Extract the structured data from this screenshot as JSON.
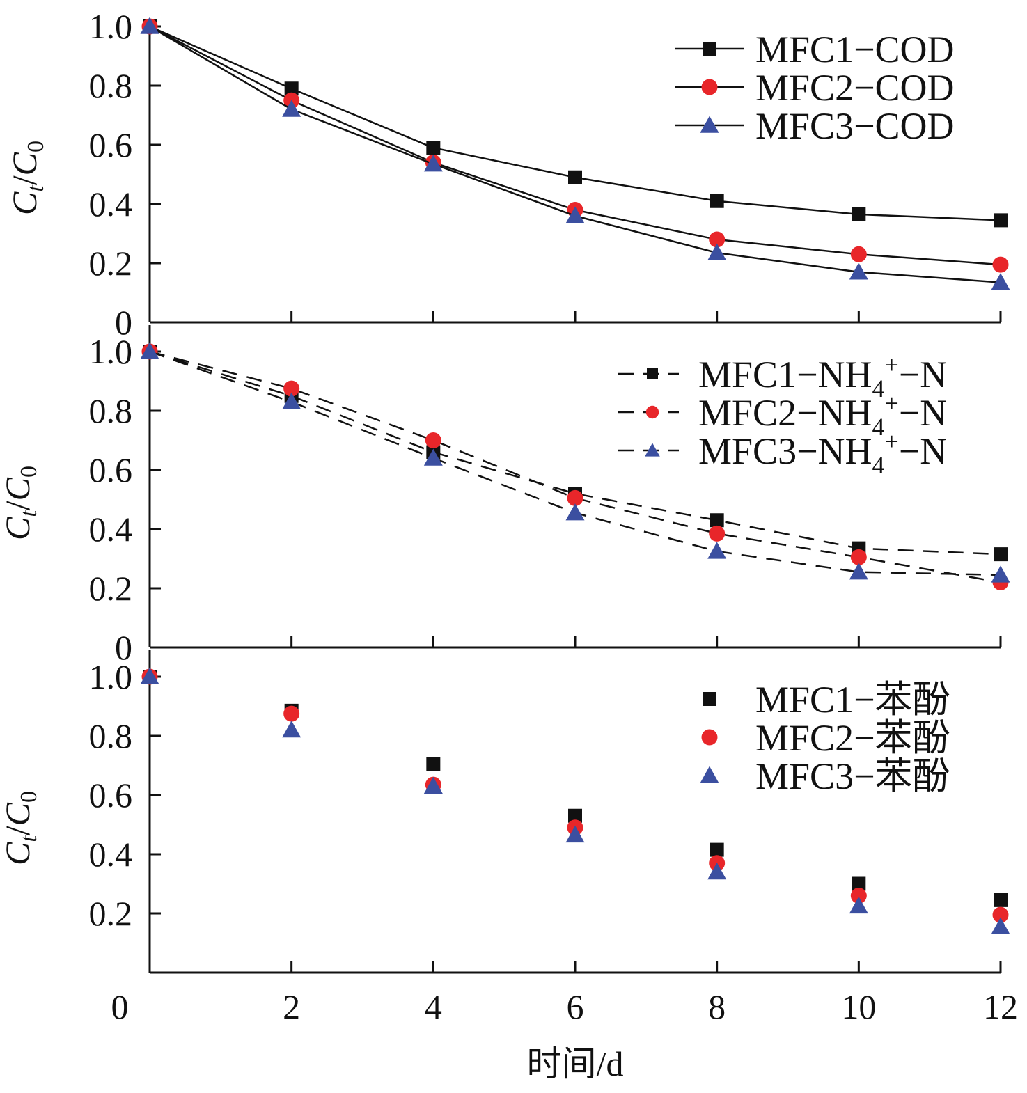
{
  "colors": {
    "MFC1": "#111111",
    "MFC2": "#e8262a",
    "MFC3": "#3b4fa0"
  },
  "chart_data": [
    {
      "type": "line",
      "ylabel": "C_t/C_0",
      "ylim": [
        0,
        1.0
      ],
      "yticks": [
        "0",
        "0.2",
        "0.4",
        "0.6",
        "0.8",
        "1.0"
      ],
      "line_style": "solid",
      "legend_position": "top-right",
      "x": [
        0,
        2,
        4,
        6,
        8,
        10,
        12
      ],
      "series": [
        {
          "name": "MFC1−COD",
          "marker": "square",
          "values": [
            1.0,
            0.79,
            0.59,
            0.49,
            0.41,
            0.365,
            0.345
          ]
        },
        {
          "name": "MFC2−COD",
          "marker": "circle",
          "values": [
            1.0,
            0.75,
            0.54,
            0.38,
            0.28,
            0.23,
            0.195
          ]
        },
        {
          "name": "MFC3−COD",
          "marker": "triangle",
          "values": [
            1.0,
            0.72,
            0.535,
            0.36,
            0.235,
            0.17,
            0.135
          ]
        }
      ]
    },
    {
      "type": "line",
      "ylabel": "C_t/C_0",
      "ylim": [
        0,
        1.0
      ],
      "yticks": [
        "0",
        "0.2",
        "0.4",
        "0.6",
        "0.8",
        "1.0"
      ],
      "line_style": "dashed",
      "legend_position": "top-right",
      "x": [
        0,
        2,
        4,
        6,
        8,
        10,
        12
      ],
      "series": [
        {
          "name": "MFC1−NH4+−N",
          "marker": "square",
          "values": [
            1.0,
            0.85,
            0.66,
            0.52,
            0.43,
            0.335,
            0.315
          ]
        },
        {
          "name": "MFC2−NH4+−N",
          "marker": "circle",
          "values": [
            1.0,
            0.875,
            0.7,
            0.505,
            0.385,
            0.305,
            0.22
          ]
        },
        {
          "name": "MFC3−NH4+−N",
          "marker": "triangle",
          "values": [
            1.0,
            0.83,
            0.64,
            0.455,
            0.325,
            0.255,
            0.245
          ]
        }
      ]
    },
    {
      "type": "scatter",
      "ylabel": "C_t/C_0",
      "xlabel": "时间/d",
      "ylim": [
        0,
        1.0
      ],
      "yticks": [
        "0.2",
        "0.4",
        "0.6",
        "0.8",
        "1.0"
      ],
      "xticks": [
        "0",
        "2",
        "4",
        "6",
        "8",
        "10",
        "12"
      ],
      "legend_position": "top-right",
      "x": [
        0,
        2,
        4,
        6,
        8,
        10,
        12
      ],
      "series": [
        {
          "name": "MFC1−苯酚",
          "marker": "square",
          "values": [
            1.0,
            0.885,
            0.705,
            0.53,
            0.415,
            0.3,
            0.245
          ]
        },
        {
          "name": "MFC2−苯酚",
          "marker": "circle",
          "values": [
            1.0,
            0.875,
            0.635,
            0.49,
            0.37,
            0.26,
            0.195
          ]
        },
        {
          "name": "MFC3−苯酚",
          "marker": "triangle",
          "values": [
            1.0,
            0.82,
            0.63,
            0.465,
            0.34,
            0.225,
            0.155
          ]
        }
      ]
    }
  ]
}
